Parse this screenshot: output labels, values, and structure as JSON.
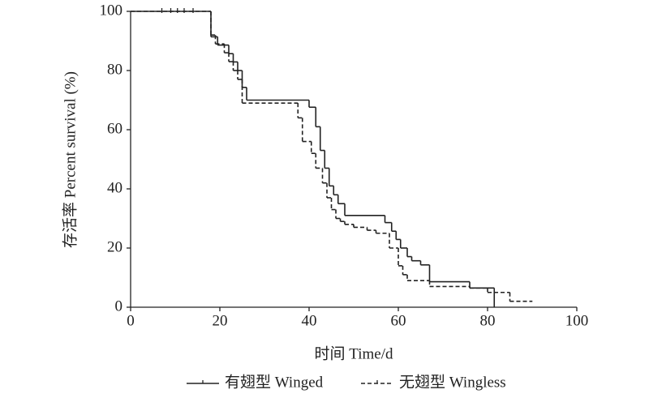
{
  "chart_data": {
    "type": "step",
    "x_label": "时间 Time/d",
    "y_label": "存活率 Percent survival (%)",
    "xlim": [
      0,
      100
    ],
    "xticks": [
      0,
      20,
      40,
      60,
      80,
      100
    ],
    "ylim": [
      0,
      100
    ],
    "yticks": [
      0,
      20,
      40,
      60,
      80,
      100
    ],
    "series": [
      {
        "name": "有翅型 Winged",
        "color": "#222222",
        "dash": "solid",
        "x": [
          0,
          18,
          19.5,
          22,
          23,
          24,
          25,
          26,
          40,
          41.5,
          42.5,
          43.5,
          44.5,
          45.5,
          46.5,
          48,
          57,
          58.5,
          59.5,
          60.5,
          62,
          63,
          65,
          67,
          76,
          81.5
        ],
        "values": [
          100,
          91.4,
          88.6,
          85.7,
          82.9,
          80,
          74.3,
          70,
          67.6,
          61,
          53,
          47,
          41,
          38,
          35,
          31,
          28.6,
          25.7,
          22.9,
          20,
          17.1,
          15.7,
          14.3,
          8.6,
          6.5,
          0
        ],
        "censored_x": [
          7,
          9,
          10.5,
          12,
          14
        ],
        "censored_values": [
          100,
          100,
          100,
          100,
          100
        ]
      },
      {
        "name": "无翅型 Wingless",
        "color": "#222222",
        "dash": "dashed",
        "x": [
          0,
          18,
          19,
          21,
          22,
          23,
          24,
          25,
          37.5,
          38.5,
          40.5,
          41.5,
          43,
          44,
          45,
          46,
          47,
          48,
          50,
          53,
          55,
          58,
          60,
          61,
          62,
          67,
          76,
          80,
          85,
          90
        ],
        "values": [
          100,
          92,
          89,
          86,
          83,
          80,
          77,
          69,
          64,
          56,
          52,
          47,
          42,
          37,
          33,
          30,
          29,
          28,
          27,
          26,
          25,
          20,
          14,
          11,
          9,
          7,
          6.5,
          5,
          2,
          2
        ],
        "censored_x": [],
        "censored_values": []
      }
    ]
  }
}
